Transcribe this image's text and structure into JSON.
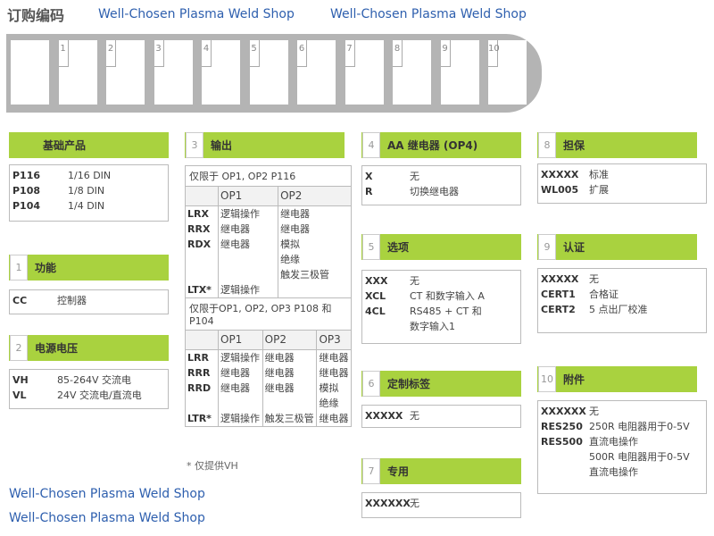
{
  "title": "订购编码",
  "slots": [
    "",
    "1",
    "2",
    "3",
    "4",
    "5",
    "6",
    "7",
    "8",
    "9",
    "10"
  ],
  "base": {
    "title": "基础产品",
    "rows": [
      [
        "P116",
        "1/16 DIN"
      ],
      [
        "P108",
        "1/8 DIN"
      ],
      [
        "P104",
        "1/4 DIN"
      ]
    ]
  },
  "s1": {
    "num": "1",
    "title": "功能",
    "rows": [
      [
        "CC",
        "控制器"
      ]
    ]
  },
  "s2": {
    "num": "2",
    "title": "电源电压",
    "rows": [
      [
        "VH",
        "85-264V 交流电"
      ],
      [
        "VL",
        "24V 交流电/直流电"
      ]
    ]
  },
  "s3": {
    "num": "3",
    "title": "输出",
    "note1": "仅限于 OP1, OP2 P116",
    "cols1": [
      "OP1",
      "OP2"
    ],
    "codes1": "LRX\nRRX\nRDX\n\n\nLTX*",
    "op1_1": "逻辑操作\n继电器\n继电器\n\n\n逻辑操作",
    "op2_1": "继电器\n继电器\n模拟\n绝缘\n触发三极管",
    "note2": "仅限于OP1, OP2, OP3 P108 和 P104",
    "cols2": [
      "OP1",
      "OP2",
      "OP3"
    ],
    "codes2": "LRR\nRRR\nRRD\n\nLTR*",
    "op1_2": "逻辑操作\n继电器\n继电器\n\n逻辑操作",
    "op2_2": "继电器\n继电器\n继电器\n\n触发三极管",
    "op3_2": "继电器\n继电器\n模拟\n绝缘\n继电器",
    "footnote": "* 仅提供VH"
  },
  "s4": {
    "num": "4",
    "title": "AA 继电器 (OP4)",
    "rows": [
      [
        "X",
        "无"
      ],
      [
        "R",
        "切换继电器"
      ]
    ]
  },
  "s5": {
    "num": "5",
    "title": "选项",
    "rows": [
      [
        "XXX",
        "无"
      ],
      [
        "XCL",
        "CT 和数字输入 A"
      ],
      [
        "4CL",
        "RS485 + CT 和\n数字输入1"
      ]
    ]
  },
  "s6": {
    "num": "6",
    "title": "定制标签",
    "rows": [
      [
        "XXXXX",
        "无"
      ]
    ]
  },
  "s7": {
    "num": "7",
    "title": "专用",
    "rows": [
      [
        "XXXXXX",
        "无"
      ]
    ]
  },
  "s8": {
    "num": "8",
    "title": "担保",
    "rows": [
      [
        "XXXXX",
        "标准"
      ],
      [
        "WL005",
        "扩展"
      ]
    ]
  },
  "s9": {
    "num": "9",
    "title": "认证",
    "rows": [
      [
        "XXXXX",
        "无"
      ],
      [
        "CERT1",
        "合格证"
      ],
      [
        "CERT2",
        "5 点出厂校准"
      ]
    ]
  },
  "s10": {
    "num": "10",
    "title": "附件",
    "rows": [
      [
        "XXXXXX",
        "无"
      ],
      [
        "RES250",
        "250R 电阻器用于0-5V"
      ],
      [
        "RES500",
        "直流电操作"
      ],
      [
        "",
        "500R 电阻器用于0-5V"
      ],
      [
        "",
        "直流电操作"
      ]
    ]
  },
  "watermark": "Well-Chosen Plasma Weld Shop",
  "colors": {
    "header": "#a9d23f",
    "bar": "#b4b4b4",
    "watermark": "#2e5fae"
  }
}
